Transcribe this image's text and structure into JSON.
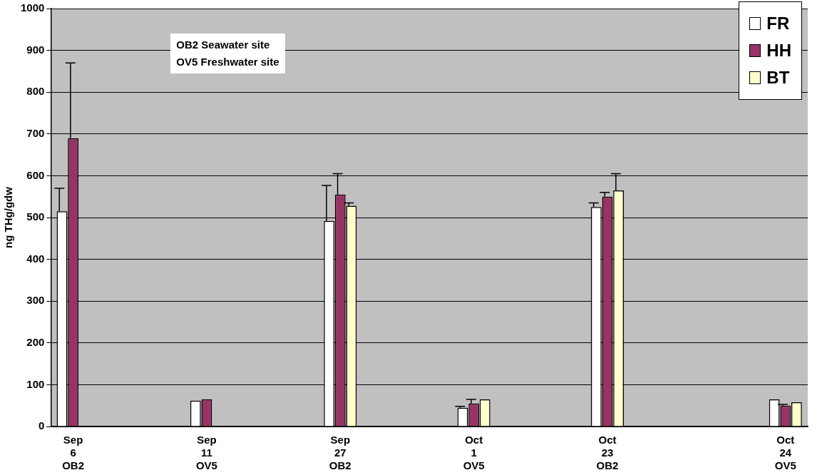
{
  "chart_data": {
    "type": "bar",
    "ylabel": "ng THg/gdw",
    "categories": [
      "Sep\n6\nOB2",
      null,
      null,
      "Sep\n11\nOV5",
      null,
      null,
      "Sep\n27\nOB2",
      null,
      null,
      "Oct\n1\nOV5",
      null,
      null,
      "Oct\n23\nOB2",
      null,
      null,
      null,
      "Oct\n24\nOV5"
    ],
    "series": [
      {
        "name": "FR",
        "color": "#ffffff",
        "values": [
          515,
          null,
          null,
          62,
          null,
          null,
          492,
          null,
          null,
          45,
          null,
          null,
          525,
          null,
          null,
          null,
          65
        ],
        "errors": [
          [
            515,
            570
          ],
          null,
          null,
          null,
          null,
          null,
          [
            492,
            577
          ],
          null,
          null,
          [
            45,
            48
          ],
          null,
          null,
          [
            525,
            535
          ],
          null,
          null,
          null,
          null
        ]
      },
      {
        "name": "HH",
        "color": "#993366",
        "values": [
          690,
          null,
          null,
          65,
          null,
          null,
          555,
          null,
          null,
          55,
          null,
          null,
          550,
          null,
          null,
          null,
          50
        ],
        "errors": [
          [
            690,
            870
          ],
          null,
          null,
          null,
          null,
          null,
          [
            555,
            605
          ],
          null,
          null,
          [
            55,
            65
          ],
          null,
          null,
          [
            550,
            560
          ],
          null,
          null,
          null,
          [
            50,
            53
          ]
        ]
      },
      {
        "name": "BT",
        "color": "#ffffcc",
        "values": [
          null,
          null,
          null,
          null,
          null,
          null,
          528,
          null,
          null,
          65,
          null,
          null,
          565,
          null,
          null,
          null,
          58
        ],
        "errors": [
          null,
          null,
          null,
          null,
          null,
          null,
          [
            528,
            535
          ],
          null,
          null,
          null,
          null,
          null,
          [
            565,
            605
          ],
          null,
          null,
          null,
          null
        ]
      }
    ],
    "ylim": [
      0,
      1000
    ],
    "yticks": [
      0,
      100,
      200,
      300,
      400,
      500,
      600,
      700,
      800,
      900,
      1000
    ],
    "grid": "y",
    "legend": "top right",
    "annotations": [
      "OB2 Seawater site",
      "OV5 Freshwater site"
    ]
  }
}
